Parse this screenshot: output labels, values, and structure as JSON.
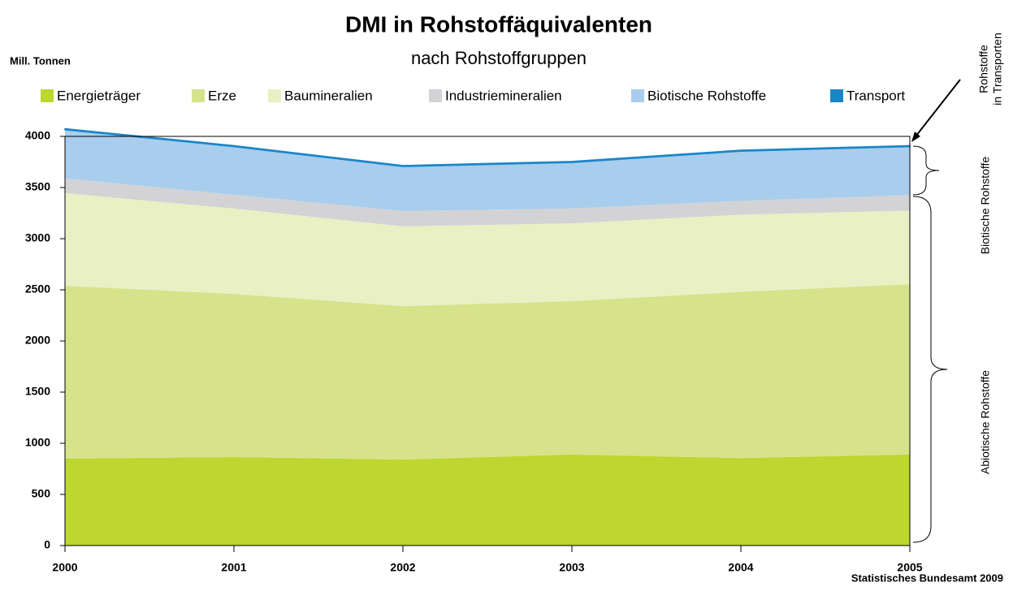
{
  "chart_data": {
    "type": "stacked_area",
    "title": "DMI in Rohstoffäquivalenten",
    "subtitle": "nach Rohstoffgruppen",
    "y_label": "Mill. Tonnen",
    "source": "Statistisches Bundesamt 2009",
    "x": [
      2000,
      2001,
      2002,
      2003,
      2004,
      2005
    ],
    "xlim": [
      2000,
      2005
    ],
    "xticks": [
      2000,
      2001,
      2002,
      2003,
      2004,
      2005
    ],
    "ylim": [
      0,
      4000
    ],
    "yticks": [
      0,
      500,
      1000,
      1500,
      2000,
      2500,
      3000,
      3500,
      4000
    ],
    "series": [
      {
        "name": "Energieträger",
        "color": "#bdd630",
        "values": [
          850,
          865,
          840,
          890,
          855,
          890
        ]
      },
      {
        "name": "Erze",
        "color": "#d6e38a",
        "values": [
          1690,
          1595,
          1500,
          1500,
          1625,
          1665
        ]
      },
      {
        "name": "Baumineralien",
        "color": "#e8f0c4",
        "values": [
          905,
          835,
          780,
          760,
          755,
          720
        ]
      },
      {
        "name": "Industriemineralien",
        "color": "#d3d3d5",
        "values": [
          145,
          135,
          150,
          145,
          135,
          150
        ]
      },
      {
        "name": "Biotische Rohstoffe",
        "color": "#a9cdec",
        "values": [
          475,
          470,
          435,
          450,
          485,
          475
        ]
      },
      {
        "name": "Transport",
        "color": "#1a86c8",
        "values": [
          10,
          10,
          10,
          10,
          10,
          10
        ]
      }
    ],
    "annotations": [
      {
        "lines": [
          "Rohstoffe",
          "in Transporten"
        ]
      },
      {
        "lines": [
          "Biotische Rohstoffe"
        ]
      },
      {
        "lines": [
          "Abiotische Rohstoffe"
        ]
      }
    ]
  }
}
